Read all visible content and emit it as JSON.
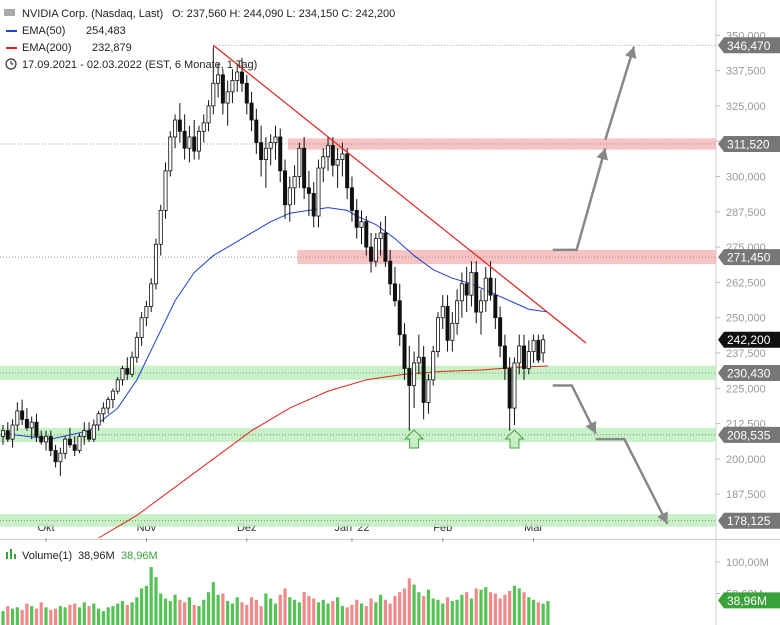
{
  "header": {
    "instrument": "NVIDIA Corp. (Nasdaq, Last)",
    "ohlc": "O: 237,560  H: 244,090  L: 234,150  C: 242,200",
    "ema50": {
      "label": "EMA(50)",
      "value": "254,483",
      "color": "#1f3fd6"
    },
    "ema200": {
      "label": "EMA(200)",
      "value": "232,879",
      "color": "#e2231a"
    },
    "period": "17.09.2021 - 02.03.2022   (EST, 6 Monate, 1 Tag)",
    "clock_icon": "clock-icon"
  },
  "chart_data": {
    "type": "candlestick",
    "y_ticks": [
      "350,000",
      "337,500",
      "325,000",
      "312,500",
      "300,000",
      "287,500",
      "275,000",
      "262,500",
      "250,000",
      "237,500",
      "225,000",
      "212,500",
      "200,000",
      "187,500"
    ],
    "y_tick_values": [
      350,
      337.5,
      325,
      312.5,
      300,
      287.5,
      275,
      262.5,
      250,
      237.5,
      225,
      212.5,
      200,
      187.5
    ],
    "ylim": [
      172,
      354
    ],
    "x_ticks": [
      {
        "label": "Okt",
        "index": 9
      },
      {
        "label": "Nov",
        "index": 30
      },
      {
        "label": "Dez",
        "index": 51
      },
      {
        "label": "Jan '22",
        "index": 73
      },
      {
        "label": "Feb",
        "index": 92
      },
      {
        "label": "Mär",
        "index": 111
      }
    ],
    "price_labels": [
      {
        "value": 346.47,
        "label": "346,470",
        "color": "#777777"
      },
      {
        "value": 311.52,
        "label": "311,520",
        "color": "#777777"
      },
      {
        "value": 271.45,
        "label": "271,450",
        "color": "#777777"
      },
      {
        "value": 242.2,
        "label": "242,200",
        "color": "#111111"
      },
      {
        "value": 230.43,
        "label": "230,430",
        "color": "#777777"
      },
      {
        "value": 208.535,
        "label": "208,535",
        "color": "#777777"
      },
      {
        "value": 178.125,
        "label": "178,125",
        "color": "#777777"
      }
    ],
    "resistance_zones": [
      {
        "low": 309.5,
        "high": 313.5,
        "from": 60
      },
      {
        "low": 269,
        "high": 274,
        "from": 62
      }
    ],
    "support_zones": [
      {
        "low": 228,
        "high": 233
      },
      {
        "low": 206,
        "high": 211
      },
      {
        "low": 176,
        "high": 180.5
      }
    ],
    "colors": {
      "up": "#111111",
      "down": "#111111",
      "resistance": "#f7b9b9",
      "support": "#bfeebd",
      "trendline": "#e2231a",
      "arrow": "#888888"
    },
    "trendline": {
      "from": [
        44,
        346.47
      ],
      "to": [
        122,
        241
      ]
    },
    "up_arrows": [
      86,
      107
    ],
    "ohlc": [
      [
        208,
        212,
        205,
        210
      ],
      [
        210,
        213,
        206,
        207
      ],
      [
        207,
        214,
        204,
        212
      ],
      [
        212,
        220,
        210,
        217
      ],
      [
        217,
        221,
        212,
        214
      ],
      [
        214,
        218,
        210,
        211
      ],
      [
        211,
        215,
        207,
        213
      ],
      [
        213,
        216,
        206,
        208
      ],
      [
        208,
        210,
        205,
        206
      ],
      [
        206,
        210,
        203,
        208
      ],
      [
        208,
        210,
        201,
        203
      ],
      [
        203,
        205,
        197,
        199
      ],
      [
        199,
        204,
        194,
        202
      ],
      [
        202,
        208,
        200,
        207
      ],
      [
        207,
        211,
        204,
        205
      ],
      [
        205,
        208,
        201,
        203
      ],
      [
        203,
        209,
        202,
        208
      ],
      [
        208,
        213,
        205,
        210
      ],
      [
        210,
        213,
        206,
        207
      ],
      [
        207,
        214,
        206,
        212
      ],
      [
        212,
        217,
        210,
        216
      ],
      [
        216,
        220,
        213,
        218
      ],
      [
        218,
        222,
        216,
        221
      ],
      [
        221,
        225,
        218,
        224
      ],
      [
        224,
        229,
        223,
        228
      ],
      [
        228,
        233,
        226,
        232
      ],
      [
        232,
        236,
        228,
        230
      ],
      [
        230,
        238,
        229,
        236
      ],
      [
        236,
        245,
        234,
        243
      ],
      [
        243,
        252,
        240,
        250
      ],
      [
        250,
        256,
        247,
        254
      ],
      [
        254,
        264,
        252,
        262
      ],
      [
        262,
        278,
        260,
        276
      ],
      [
        276,
        290,
        272,
        288
      ],
      [
        288,
        305,
        285,
        302
      ],
      [
        302,
        316,
        300,
        314
      ],
      [
        314,
        322,
        310,
        320
      ],
      [
        320,
        326,
        312,
        316
      ],
      [
        316,
        322,
        306,
        310
      ],
      [
        310,
        318,
        305,
        314
      ],
      [
        314,
        320,
        306,
        309
      ],
      [
        309,
        318,
        306,
        316
      ],
      [
        316,
        322,
        312,
        319
      ],
      [
        319,
        327,
        316,
        325
      ],
      [
        325,
        346,
        322,
        333
      ],
      [
        333,
        340,
        328,
        336
      ],
      [
        336,
        338,
        322,
        326
      ],
      [
        326,
        334,
        318,
        330
      ],
      [
        330,
        338,
        326,
        334
      ],
      [
        334,
        340,
        330,
        337
      ],
      [
        337,
        342,
        330,
        333
      ],
      [
        333,
        336,
        322,
        326
      ],
      [
        326,
        330,
        316,
        320
      ],
      [
        320,
        324,
        308,
        312
      ],
      [
        312,
        318,
        300,
        306
      ],
      [
        306,
        314,
        296,
        310
      ],
      [
        310,
        315,
        304,
        312
      ],
      [
        312,
        318,
        306,
        314
      ],
      [
        314,
        317,
        298,
        302
      ],
      [
        302,
        306,
        285,
        290
      ],
      [
        290,
        300,
        284,
        296
      ],
      [
        296,
        304,
        290,
        300
      ],
      [
        300,
        312,
        296,
        310
      ],
      [
        310,
        314,
        292,
        296
      ],
      [
        296,
        302,
        286,
        294
      ],
      [
        294,
        298,
        282,
        286
      ],
      [
        286,
        306,
        282,
        303
      ],
      [
        303,
        310,
        298,
        307
      ],
      [
        307,
        314,
        302,
        311
      ],
      [
        311,
        314,
        300,
        304
      ],
      [
        304,
        310,
        296,
        306
      ],
      [
        306,
        312,
        300,
        308
      ],
      [
        308,
        310,
        292,
        296
      ],
      [
        296,
        300,
        284,
        288
      ],
      [
        288,
        292,
        278,
        282
      ],
      [
        282,
        288,
        276,
        284
      ],
      [
        284,
        286,
        272,
        275
      ],
      [
        275,
        280,
        266,
        270
      ],
      [
        270,
        280,
        268,
        278
      ],
      [
        278,
        284,
        272,
        280
      ],
      [
        280,
        286,
        268,
        270
      ],
      [
        270,
        274,
        258,
        262
      ],
      [
        262,
        268,
        254,
        256
      ],
      [
        256,
        262,
        240,
        244
      ],
      [
        244,
        248,
        228,
        232
      ],
      [
        232,
        240,
        210,
        226
      ],
      [
        226,
        238,
        218,
        234
      ],
      [
        234,
        244,
        230,
        236
      ],
      [
        236,
        240,
        214,
        220
      ],
      [
        220,
        230,
        216,
        228
      ],
      [
        228,
        240,
        226,
        238
      ],
      [
        238,
        252,
        236,
        250
      ],
      [
        250,
        258,
        246,
        254
      ],
      [
        254,
        258,
        238,
        242
      ],
      [
        242,
        252,
        238,
        248
      ],
      [
        248,
        260,
        244,
        256
      ],
      [
        256,
        266,
        250,
        262
      ],
      [
        262,
        268,
        252,
        258
      ],
      [
        258,
        270,
        254,
        266
      ],
      [
        266,
        270,
        248,
        252
      ],
      [
        252,
        260,
        244,
        256
      ],
      [
        256,
        268,
        252,
        264
      ],
      [
        264,
        270,
        256,
        258
      ],
      [
        258,
        264,
        246,
        250
      ],
      [
        250,
        254,
        236,
        240
      ],
      [
        240,
        244,
        228,
        232
      ],
      [
        232,
        236,
        210,
        218
      ],
      [
        218,
        236,
        212,
        234
      ],
      [
        234,
        244,
        230,
        240
      ],
      [
        240,
        244,
        228,
        232
      ],
      [
        232,
        242,
        230,
        238
      ],
      [
        238,
        244,
        234,
        242
      ],
      [
        242,
        244,
        234,
        235
      ],
      [
        237.56,
        244.09,
        234.15,
        242.2
      ]
    ],
    "ema50": [
      [
        0,
        209
      ],
      [
        10,
        207
      ],
      [
        18,
        210
      ],
      [
        24,
        218
      ],
      [
        28,
        228
      ],
      [
        32,
        242
      ],
      [
        36,
        256
      ],
      [
        40,
        266
      ],
      [
        44,
        272
      ],
      [
        48,
        276
      ],
      [
        52,
        280
      ],
      [
        56,
        284
      ],
      [
        60,
        287
      ],
      [
        64,
        288
      ],
      [
        68,
        289
      ],
      [
        72,
        288
      ],
      [
        74,
        286
      ],
      [
        78,
        283
      ],
      [
        82,
        278
      ],
      [
        86,
        272
      ],
      [
        90,
        267
      ],
      [
        94,
        264
      ],
      [
        98,
        262
      ],
      [
        102,
        259
      ],
      [
        106,
        256
      ],
      [
        110,
        253
      ],
      [
        114,
        252
      ]
    ],
    "ema200": [
      [
        20,
        172
      ],
      [
        28,
        180
      ],
      [
        36,
        190
      ],
      [
        44,
        200
      ],
      [
        52,
        210
      ],
      [
        60,
        218
      ],
      [
        68,
        224
      ],
      [
        76,
        228
      ],
      [
        84,
        230
      ],
      [
        92,
        231
      ],
      [
        100,
        231.5
      ],
      [
        108,
        232.5
      ],
      [
        114,
        232.9
      ]
    ],
    "arrows": [
      {
        "points": [
          [
            115,
            274
          ],
          [
            120,
            274
          ],
          [
            126,
            310
          ]
        ]
      },
      {
        "points": [
          [
            126,
            313
          ],
          [
            132,
            346
          ]
        ]
      },
      {
        "points": [
          [
            115,
            226
          ],
          [
            119,
            226
          ],
          [
            124,
            209
          ]
        ]
      },
      {
        "points": [
          [
            124,
            207
          ],
          [
            130,
            207
          ],
          [
            139,
            177
          ]
        ]
      }
    ]
  },
  "volume": {
    "label": "Volume(1)",
    "value1": "38,96M",
    "value2": "38,96M",
    "icon": "bar-chart-icon",
    "ticks": [
      "100,00M",
      "50,00M"
    ],
    "tick_values": [
      100,
      50
    ],
    "ylim": [
      0,
      130
    ],
    "last_label": "38,96M",
    "label_color": "#3aa23a",
    "values": [
      22,
      30,
      26,
      28,
      24,
      34,
      30,
      26,
      36,
      28,
      24,
      26,
      30,
      28,
      32,
      34,
      28,
      36,
      30,
      34,
      26,
      22,
      28,
      30,
      34,
      38,
      32,
      36,
      44,
      58,
      62,
      92,
      76,
      50,
      42,
      38,
      48,
      40,
      36,
      44,
      32,
      30,
      40,
      52,
      68,
      48,
      50,
      38,
      34,
      44,
      36,
      32,
      44,
      40,
      30,
      50,
      42,
      34,
      48,
      58,
      44,
      40,
      36,
      52,
      46,
      42,
      36,
      40,
      34,
      38,
      44,
      30,
      28,
      32,
      40,
      34,
      30,
      42,
      36,
      48,
      40,
      34,
      46,
      52,
      58,
      74,
      64,
      52,
      46,
      56,
      42,
      40,
      34,
      44,
      38,
      40,
      48,
      52,
      42,
      58,
      56,
      60,
      52,
      50,
      42,
      48,
      54,
      62,
      58,
      52,
      44,
      40,
      36,
      34,
      38
    ]
  }
}
